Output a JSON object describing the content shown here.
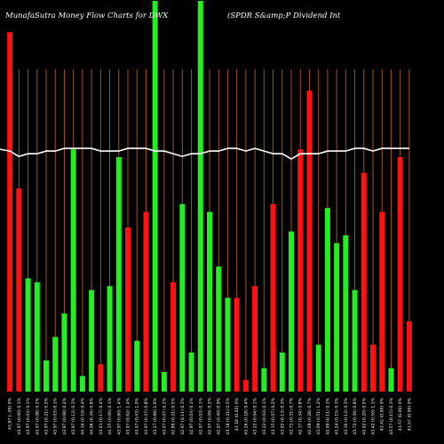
{
  "header": {
    "left_title": "MunafaSutra  Money Flow  Charts for DWX",
    "right_title": "(SPDR S&amp;P Dividend Int"
  },
  "chart_data": {
    "type": "bar",
    "title": "MunafaSutra  Money Flow  Charts for DWX",
    "subtitle": "(SPDR S&amp;P Dividend Int",
    "grid": true,
    "grid_color": "#a0522d",
    "background": "#000000",
    "line_color": "#ffffff",
    "colors": {
      "up": "#22ee22",
      "down": "#ff1111"
    },
    "ylim": [
      0,
      100
    ],
    "categories": [
      "43.97 (-.00) 0%",
      "43.97 (0.00) 0.1%",
      "43.97 (0.03) 0.1%",
      "43.97 (0.08) 0.2%",
      "43.97 (0.21) 0.5%",
      "43.97 (0.03) 0.1%",
      "43.97 (0.08) 0.2%",
      "43.97 (0.12) 0.3%",
      "44.16 (0.19) 0.4%",
      "44.06 (0.34) 0.8%",
      "44.41 (0.17) 0.4%",
      "44.35 (0.06) 0.1%",
      "43.97 (0.60) 1.4%",
      "43.97 (0.62) 1.4%",
      "43.97 (0.43) 1.0%",
      "43.97 (0.37) 0.8%",
      "43.27 (0.68) 1.6%",
      "43.07 (0.07) 0.2%",
      "42.86 (0.21) 0.5%",
      "42.97 (0.11) 0.3%",
      "42.97 (0.03) 0.1%",
      "42.97 (0.03) 0.1%",
      "42.97 (0.09) 0.2%",
      "42.97 (0.40) 0.9%",
      "43.18 (0.21) 0.5%",
      "43.18 (0.02) 0%",
      "43.26 (0.18) 0.4%",
      "43.22 (0.04) 0.1%",
      "43.22 (0.03) 0.1%",
      "43.15 (0.07) 0.2%",
      "43.02 (0.13) 0.3%",
      "42.71 (0.31) 0.7%",
      "42.37 (0.34) 0.8%",
      "42.09 (0.28) 0.7%",
      "43.09 (0.51) 1.2%",
      "43.09 (0.11) 0.3%",
      "43.24 (0.15) 0.3%",
      "43.36 (0.12) 0.3%",
      "43.72 (0.36) 0.8%",
      "43.92 (0.20) 0.5%",
      "43.42 (0.50) 1.1%",
      "43.42 (0.00) 0%",
      "43.57 (0.15) 0.3%",
      "43.57 (0.00) 0%",
      "43.57 (0.00) 0%"
    ],
    "values": [
      92,
      52,
      29,
      28,
      8,
      14,
      20,
      62,
      4,
      26,
      7,
      27,
      60,
      42,
      13,
      46,
      100,
      5,
      28,
      48,
      10,
      100,
      46,
      32,
      24,
      24,
      3,
      27,
      6,
      48,
      10,
      41,
      62,
      77,
      12,
      47,
      38,
      40,
      26,
      56,
      12,
      46,
      6,
      60,
      18
    ],
    "directions": [
      "down",
      "down",
      "up",
      "up",
      "up",
      "up",
      "up",
      "up",
      "up",
      "up",
      "down",
      "up",
      "up",
      "down",
      "up",
      "down",
      "up",
      "up",
      "down",
      "up",
      "up",
      "up",
      "up",
      "up",
      "up",
      "down",
      "down",
      "down",
      "up",
      "down",
      "up",
      "up",
      "down",
      "down",
      "up",
      "up",
      "up",
      "up",
      "up",
      "down",
      "down",
      "down",
      "up",
      "down",
      "down"
    ],
    "line_values": [
      90,
      88,
      89,
      89,
      90,
      90,
      91,
      91,
      91,
      91,
      90,
      90,
      90,
      91,
      91,
      91,
      90,
      90,
      89,
      88,
      89,
      89,
      90,
      90,
      91,
      91,
      90,
      91,
      90,
      89,
      89,
      87,
      89,
      89,
      89,
      90,
      90,
      90,
      91,
      91,
      90,
      91,
      91,
      91,
      91
    ],
    "line_ylim": [
      0,
      100
    ]
  }
}
